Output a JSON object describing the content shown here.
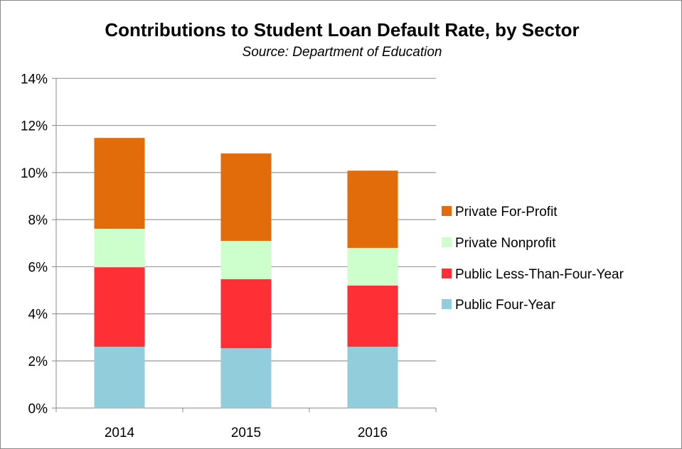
{
  "chart_data": {
    "type": "bar",
    "stacked": true,
    "title": "Contributions to Student Loan Default Rate, by Sector",
    "subtitle": "Source: Department of Education",
    "xlabel": "",
    "ylabel": "",
    "categories": [
      "2014",
      "2015",
      "2016"
    ],
    "ylim": [
      0,
      14
    ],
    "yticks": [
      "0%",
      "2%",
      "4%",
      "6%",
      "8%",
      "10%",
      "12%",
      "14%"
    ],
    "grid": true,
    "legend_position": "right",
    "series": [
      {
        "name": "Public Four-Year",
        "color": "#92cddc",
        "values": [
          2.6,
          2.54,
          2.6
        ]
      },
      {
        "name": "Public Less-Than-Four-Year",
        "color": "#ff3035",
        "values": [
          3.38,
          2.93,
          2.6
        ]
      },
      {
        "name": "Private Nonprofit",
        "color": "#ccffcc",
        "values": [
          1.63,
          1.63,
          1.6
        ]
      },
      {
        "name": "Private For-Profit",
        "color": "#e26b0a",
        "values": [
          3.86,
          3.71,
          3.28
        ]
      }
    ]
  }
}
